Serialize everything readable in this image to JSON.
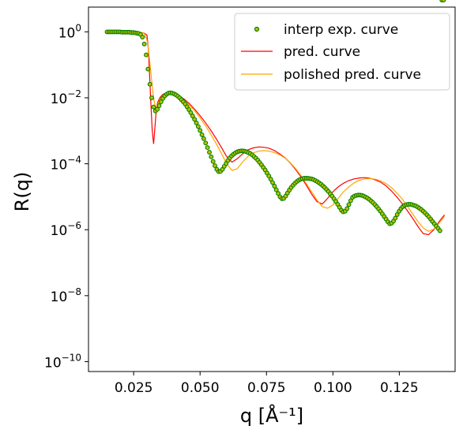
{
  "chart_data": {
    "type": "line",
    "xlabel": "q [Å⁻¹]",
    "ylabel": "R(q)",
    "xlim": [
      0.008,
      0.146
    ],
    "ylim_log10": [
      -10.3,
      0.75
    ],
    "y_scale": "log",
    "grid": false,
    "legend_position": "top-right",
    "x_ticks": [
      0.025,
      0.05,
      0.075,
      0.1,
      0.125
    ],
    "x_tick_labels": [
      "0.025",
      "0.050",
      "0.075",
      "0.100",
      "0.125"
    ],
    "y_ticks_log10": [
      0,
      -2,
      -4,
      -6,
      -8,
      -10
    ],
    "y_tick_labels": [
      "10",
      "10",
      "10",
      "10",
      "10",
      "10"
    ],
    "y_tick_exponents": [
      "0",
      "−2",
      "−4",
      "−6",
      "−8",
      "−10"
    ],
    "colors": {
      "exp_marker_edge": "#008000",
      "exp_marker_fill": "#bfbf00",
      "pred": "#ff0000",
      "polished": "#ffa500"
    },
    "series": [
      {
        "name": "interp exp. curve",
        "kind": "scatter",
        "x": [
          0.015,
          0.0157,
          0.0164,
          0.0171,
          0.0178,
          0.0185,
          0.0192,
          0.0199,
          0.0206,
          0.0213,
          0.022,
          0.0227,
          0.0234,
          0.0241,
          0.0248,
          0.0255,
          0.0262,
          0.0269,
          0.0276,
          0.0283,
          0.029,
          0.0297,
          0.0304,
          0.0311,
          0.0318,
          0.0325,
          0.0332,
          0.0339,
          0.0346,
          0.0353,
          0.036,
          0.0367,
          0.0374,
          0.0381,
          0.0388,
          0.0395,
          0.0402,
          0.0409,
          0.0416,
          0.0423,
          0.043,
          0.0437,
          0.0444,
          0.0451,
          0.0458,
          0.0465,
          0.0472,
          0.0479,
          0.0486,
          0.0493,
          0.05,
          0.0507,
          0.0514,
          0.0521,
          0.0528,
          0.0535,
          0.0542,
          0.0549,
          0.0556,
          0.0563,
          0.057,
          0.0577,
          0.0584,
          0.0591,
          0.0598,
          0.0605,
          0.0612,
          0.0619,
          0.0626,
          0.0633,
          0.064,
          0.0647,
          0.0654,
          0.0661,
          0.0668,
          0.0675,
          0.0682,
          0.0689,
          0.0696,
          0.0703,
          0.071,
          0.0717,
          0.0724,
          0.0731,
          0.0738,
          0.0745,
          0.0752,
          0.0759,
          0.0766,
          0.0773,
          0.078,
          0.0787,
          0.0794,
          0.0801,
          0.0808,
          0.0815,
          0.0822,
          0.0829,
          0.0836,
          0.0843,
          0.085,
          0.0857,
          0.0864,
          0.0871,
          0.0878,
          0.0885,
          0.0892,
          0.0899,
          0.0906,
          0.0913,
          0.092,
          0.0927,
          0.0934,
          0.0941,
          0.0948,
          0.0955,
          0.0962,
          0.0969,
          0.0976,
          0.0983,
          0.099,
          0.0997,
          0.1004,
          0.1011,
          0.1018,
          0.1025,
          0.1032,
          0.1039,
          0.1046,
          0.1053,
          0.106,
          0.1067,
          0.1074,
          0.1081,
          0.1088,
          0.1095,
          0.1102,
          0.1109,
          0.1116,
          0.1123,
          0.113,
          0.1137,
          0.1144,
          0.1151,
          0.1158,
          0.1165,
          0.1172,
          0.1179,
          0.1186,
          0.1193,
          0.12,
          0.1207,
          0.1214,
          0.1221,
          0.1228,
          0.1235,
          0.1242,
          0.1249,
          0.1256,
          0.1263,
          0.127,
          0.1277,
          0.1284,
          0.1291,
          0.1298,
          0.1305,
          0.1312,
          0.1319,
          0.1326,
          0.1333,
          0.134,
          0.1347,
          0.1354,
          0.1361,
          0.1368,
          0.1375,
          0.1382,
          0.1389,
          0.1396,
          0.1403,
          0.141,
          0.1417
        ],
        "log10_y": [
          0.0,
          0.0,
          0.0,
          0.0,
          0.0,
          0.0,
          0.0,
          0.0,
          -0.01,
          -0.01,
          -0.01,
          -0.01,
          -0.01,
          -0.02,
          -0.02,
          -0.03,
          -0.04,
          -0.05,
          -0.08,
          -0.16,
          -0.37,
          -0.7,
          -1.13,
          -1.59,
          -2.0,
          -2.28,
          -2.4,
          -2.35,
          -2.24,
          -2.12,
          -2.02,
          -1.94,
          -1.89,
          -1.86,
          -1.85,
          -1.86,
          -1.88,
          -1.91,
          -1.95,
          -2.0,
          -2.06,
          -2.12,
          -2.19,
          -2.27,
          -2.36,
          -2.45,
          -2.55,
          -2.65,
          -2.76,
          -2.87,
          -2.99,
          -3.12,
          -3.24,
          -3.37,
          -3.51,
          -3.65,
          -3.79,
          -3.93,
          -4.06,
          -4.17,
          -4.24,
          -4.23,
          -4.17,
          -4.08,
          -3.99,
          -3.9,
          -3.82,
          -3.76,
          -3.71,
          -3.67,
          -3.64,
          -3.62,
          -3.61,
          -3.61,
          -3.62,
          -3.64,
          -3.66,
          -3.69,
          -3.73,
          -3.78,
          -3.83,
          -3.89,
          -3.96,
          -4.03,
          -4.11,
          -4.19,
          -4.28,
          -4.37,
          -4.47,
          -4.57,
          -4.68,
          -4.79,
          -4.9,
          -5.0,
          -5.06,
          -5.05,
          -4.98,
          -4.89,
          -4.8,
          -4.72,
          -4.65,
          -4.59,
          -4.54,
          -4.5,
          -4.47,
          -4.45,
          -4.44,
          -4.44,
          -4.44,
          -4.45,
          -4.46,
          -4.48,
          -4.51,
          -4.54,
          -4.58,
          -4.62,
          -4.67,
          -4.72,
          -4.78,
          -4.84,
          -4.91,
          -4.98,
          -5.06,
          -5.14,
          -5.23,
          -5.32,
          -5.41,
          -5.46,
          -5.44,
          -5.36,
          -5.24,
          -5.12,
          -5.02,
          -4.98,
          -4.96,
          -4.95,
          -4.95,
          -4.96,
          -4.98,
          -5.01,
          -5.04,
          -5.08,
          -5.13,
          -5.18,
          -5.24,
          -5.3,
          -5.37,
          -5.44,
          -5.52,
          -5.6,
          -5.68,
          -5.76,
          -5.82,
          -5.8,
          -5.74,
          -5.65,
          -5.54,
          -5.44,
          -5.36,
          -5.3,
          -5.26,
          -5.24,
          -5.23,
          -5.23,
          -5.24,
          -5.26,
          -5.28,
          -5.31,
          -5.35,
          -5.39,
          -5.44,
          -5.49,
          -5.55,
          -5.61,
          -5.68,
          -5.75,
          -5.82,
          -5.89,
          -5.96,
          -6.03
        ]
      },
      {
        "name": "pred. curve",
        "kind": "line",
        "x": [
          0.015,
          0.02,
          0.025,
          0.028,
          0.029,
          0.03,
          0.0305,
          0.031,
          0.0315,
          0.032,
          0.0325,
          0.033,
          0.0335,
          0.034,
          0.0345,
          0.035,
          0.036,
          0.037,
          0.038,
          0.039,
          0.04,
          0.042,
          0.044,
          0.046,
          0.048,
          0.05,
          0.052,
          0.054,
          0.056,
          0.058,
          0.06,
          0.062,
          0.064,
          0.066,
          0.068,
          0.07,
          0.072,
          0.074,
          0.076,
          0.078,
          0.08,
          0.082,
          0.084,
          0.086,
          0.088,
          0.09,
          0.092,
          0.094,
          0.096,
          0.098,
          0.1,
          0.102,
          0.104,
          0.106,
          0.108,
          0.11,
          0.112,
          0.114,
          0.116,
          0.118,
          0.12,
          0.122,
          0.124,
          0.126,
          0.128,
          0.13,
          0.132,
          0.134,
          0.136,
          0.138,
          0.14,
          0.142
        ],
        "log10_y": [
          0.0,
          0.0,
          -0.01,
          -0.02,
          -0.04,
          -0.1,
          -0.5,
          -1.3,
          -2.2,
          -3.0,
          -3.4,
          -2.9,
          -2.4,
          -2.15,
          -2.05,
          -1.98,
          -1.9,
          -1.86,
          -1.84,
          -1.84,
          -1.86,
          -1.93,
          -2.04,
          -2.18,
          -2.35,
          -2.54,
          -2.75,
          -2.98,
          -3.23,
          -3.5,
          -3.78,
          -3.95,
          -3.85,
          -3.7,
          -3.58,
          -3.52,
          -3.49,
          -3.5,
          -3.53,
          -3.6,
          -3.7,
          -3.82,
          -3.98,
          -4.18,
          -4.4,
          -4.65,
          -4.92,
          -5.15,
          -5.22,
          -5.05,
          -4.85,
          -4.7,
          -4.59,
          -4.51,
          -4.46,
          -4.43,
          -4.42,
          -4.44,
          -4.49,
          -4.56,
          -4.67,
          -4.82,
          -5.0,
          -5.2,
          -5.42,
          -5.65,
          -5.9,
          -6.12,
          -6.15,
          -6.0,
          -5.75,
          -5.55
        ]
      },
      {
        "name": "polished pred. curve",
        "kind": "line",
        "x": [
          0.015,
          0.02,
          0.025,
          0.028,
          0.029,
          0.03,
          0.0305,
          0.031,
          0.0315,
          0.032,
          0.0325,
          0.033,
          0.0335,
          0.034,
          0.0345,
          0.035,
          0.036,
          0.037,
          0.038,
          0.039,
          0.04,
          0.042,
          0.044,
          0.046,
          0.048,
          0.05,
          0.052,
          0.054,
          0.056,
          0.058,
          0.06,
          0.062,
          0.064,
          0.066,
          0.068,
          0.07,
          0.072,
          0.074,
          0.076,
          0.078,
          0.08,
          0.082,
          0.084,
          0.086,
          0.088,
          0.09,
          0.092,
          0.094,
          0.096,
          0.098,
          0.1,
          0.102,
          0.104,
          0.106,
          0.108,
          0.11,
          0.112,
          0.114,
          0.116,
          0.118,
          0.12,
          0.122,
          0.124,
          0.126,
          0.128,
          0.13,
          0.132,
          0.134,
          0.136,
          0.138,
          0.14,
          0.142
        ],
        "log10_y": [
          0.0,
          0.0,
          -0.01,
          -0.02,
          -0.05,
          -0.25,
          -0.5,
          -0.85,
          -1.25,
          -1.65,
          -2.0,
          -2.22,
          -2.3,
          -2.22,
          -2.1,
          -2.02,
          -1.93,
          -1.88,
          -1.85,
          -1.85,
          -1.87,
          -1.95,
          -2.07,
          -2.22,
          -2.4,
          -2.61,
          -2.84,
          -3.1,
          -3.38,
          -3.68,
          -4.0,
          -4.2,
          -4.15,
          -3.95,
          -3.78,
          -3.67,
          -3.62,
          -3.6,
          -3.62,
          -3.66,
          -3.73,
          -3.83,
          -3.97,
          -4.15,
          -4.36,
          -4.6,
          -4.85,
          -5.1,
          -5.3,
          -5.35,
          -5.25,
          -5.05,
          -4.85,
          -4.7,
          -4.58,
          -4.5,
          -4.46,
          -4.45,
          -4.47,
          -4.52,
          -4.6,
          -4.72,
          -4.88,
          -5.06,
          -5.28,
          -5.52,
          -5.75,
          -5.95,
          -6.05,
          -5.98,
          -5.8,
          -5.6
        ]
      }
    ]
  }
}
